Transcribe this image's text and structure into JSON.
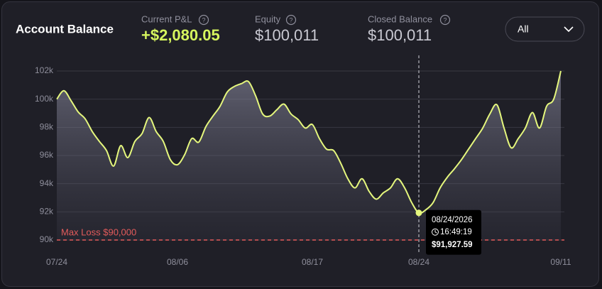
{
  "header": {
    "title": "Account Balance",
    "stats": [
      {
        "label": "Current P&L",
        "value": "+$2,080.05"
      },
      {
        "label": "Equity",
        "value": "$100,011"
      },
      {
        "label": "Closed Balance",
        "value": "$100,011"
      }
    ],
    "dropdown": "All"
  },
  "chart_data": {
    "type": "line",
    "categories": [
      "07/24",
      null,
      null,
      null,
      null,
      null,
      null,
      null,
      null,
      null,
      null,
      null,
      null,
      null,
      null,
      null,
      null,
      "08/06",
      null,
      null,
      null,
      null,
      null,
      null,
      null,
      null,
      null,
      null,
      null,
      null,
      null,
      null,
      null,
      null,
      null,
      null,
      "08/17",
      null,
      null,
      null,
      null,
      null,
      null,
      null,
      null,
      null,
      null,
      null,
      null,
      null,
      null,
      "08/24",
      null,
      null,
      null,
      null,
      null,
      null,
      null,
      null,
      null,
      null,
      null,
      null,
      null,
      null,
      null,
      null,
      null,
      null,
      null,
      "09/11"
    ],
    "series": [
      {
        "color": "#e5f77d",
        "values": [
          100000,
          100600,
          99900,
          99100,
          98600,
          97700,
          97000,
          96350,
          95250,
          96700,
          95850,
          97000,
          97550,
          98700,
          97700,
          97000,
          95700,
          95350,
          96050,
          97200,
          96950,
          98050,
          98800,
          99500,
          100500,
          100900,
          101100,
          101250,
          100250,
          98950,
          98800,
          99250,
          99650,
          98950,
          98550,
          97950,
          98200,
          97200,
          96450,
          96350,
          95450,
          94350,
          93700,
          94350,
          93450,
          92900,
          93350,
          93700,
          94350,
          93700,
          92650,
          91927.59,
          92150,
          92650,
          93700,
          94450,
          95050,
          95700,
          96450,
          97200,
          97950,
          98950,
          99600,
          97950,
          96550,
          97200,
          97950,
          99050,
          97950,
          99500,
          100000,
          102000
        ]
      }
    ],
    "ylim": [
      90000,
      102000
    ],
    "yticks": [
      {
        "value": 90000,
        "label": "90k"
      },
      {
        "value": 92000,
        "label": "92k"
      },
      {
        "value": 94000,
        "label": "94k"
      },
      {
        "value": 96000,
        "label": "96k"
      },
      {
        "value": 98000,
        "label": "98k"
      },
      {
        "value": 100000,
        "label": "100k"
      },
      {
        "value": 102000,
        "label": "102k"
      }
    ],
    "grid": true,
    "max_loss": {
      "value": 90000,
      "label": "Max Loss $90,000",
      "color": "#e35b5b"
    },
    "highlight": {
      "date": "08/24/2026",
      "time": "16:49:19",
      "value": 91927.59,
      "value_label": "$91,927.59"
    }
  }
}
